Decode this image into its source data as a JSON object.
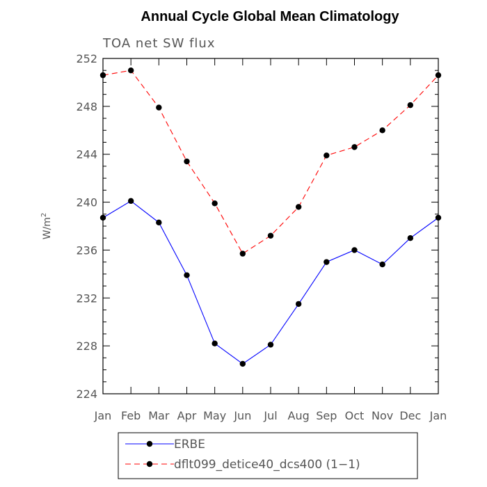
{
  "chart_data": {
    "type": "line",
    "title": "Annual Cycle Global Mean Climatology",
    "subtitle": "TOA net SW flux",
    "ylabel": "W/m",
    "ylabel_sup": "2",
    "xlabel": "",
    "categories": [
      "Jan",
      "Feb",
      "Mar",
      "Apr",
      "May",
      "Jun",
      "Jul",
      "Aug",
      "Sep",
      "Oct",
      "Nov",
      "Dec",
      "Jan"
    ],
    "ylim": [
      224,
      252
    ],
    "yticks": [
      224,
      228,
      232,
      236,
      240,
      244,
      248,
      252
    ],
    "grid": false,
    "legend_position": "bottom",
    "series": [
      {
        "name": "ERBE",
        "color": "#0000ff",
        "dash": "solid",
        "values": [
          238.7,
          240.1,
          238.3,
          233.9,
          228.2,
          226.5,
          228.1,
          231.5,
          235.0,
          236.0,
          234.8,
          237.0,
          238.7
        ]
      },
      {
        "name": "dflt099_detice40_dcs400 (1−1)",
        "color": "#ff0000",
        "dash": "dashed",
        "values": [
          250.6,
          251.0,
          247.9,
          243.4,
          239.9,
          235.7,
          237.2,
          239.6,
          243.9,
          244.6,
          246.0,
          248.1,
          250.6
        ]
      }
    ]
  }
}
